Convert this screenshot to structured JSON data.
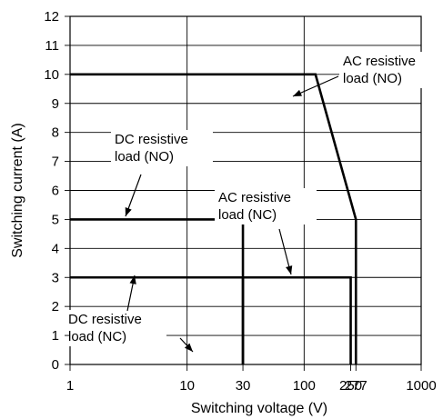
{
  "chart_data": {
    "type": "line",
    "title": "",
    "xlabel": "Switching voltage (V)",
    "ylabel": "Switching current (A)",
    "x_scale": "log",
    "xlim": [
      1,
      1000
    ],
    "ylim": [
      0,
      12
    ],
    "grid": true,
    "x_ticks": [
      {
        "value": 1,
        "label": "1"
      },
      {
        "value": 10,
        "label": "10"
      },
      {
        "value": 30,
        "label": "30"
      },
      {
        "value": 100,
        "label": "100"
      },
      {
        "value": 250,
        "label": "250"
      },
      {
        "value": 277,
        "label": "277"
      },
      {
        "value": 1000,
        "label": "1000"
      }
    ],
    "x_gridlines": [
      10,
      100
    ],
    "y_ticks": [
      {
        "value": 0,
        "label": "0"
      },
      {
        "value": 1,
        "label": "1"
      },
      {
        "value": 2,
        "label": "2"
      },
      {
        "value": 3,
        "label": "3"
      },
      {
        "value": 4,
        "label": "4"
      },
      {
        "value": 5,
        "label": "5"
      },
      {
        "value": 6,
        "label": "6"
      },
      {
        "value": 7,
        "label": "7"
      },
      {
        "value": 8,
        "label": "8"
      },
      {
        "value": 9,
        "label": "9"
      },
      {
        "value": 10,
        "label": "10"
      },
      {
        "value": 11,
        "label": "11"
      },
      {
        "value": 12,
        "label": "12"
      }
    ],
    "series": [
      {
        "name": "AC resistive load (NO)",
        "label_lines": [
          "AC resistive",
          "load (NO)"
        ],
        "points": [
          [
            1,
            10
          ],
          [
            125,
            10
          ],
          [
            277,
            5
          ],
          [
            277,
            0
          ]
        ]
      },
      {
        "name": "DC resistive load (NO)",
        "label_lines": [
          "DC resistive",
          "load (NO)"
        ],
        "points": [
          [
            1,
            5
          ],
          [
            30,
            5
          ],
          [
            30,
            0
          ]
        ]
      },
      {
        "name": "AC resistive load (NC)",
        "label_lines": [
          "AC resistive",
          "load (NC)"
        ],
        "points": [
          [
            1,
            3
          ],
          [
            250,
            3
          ],
          [
            250,
            0
          ]
        ]
      },
      {
        "name": "DC resistive load (NC)",
        "label_lines": [
          "DC resistive",
          "load (NC)"
        ],
        "points": [
          [
            1,
            3
          ],
          [
            30,
            3
          ],
          [
            30,
            0
          ]
        ]
      }
    ]
  }
}
